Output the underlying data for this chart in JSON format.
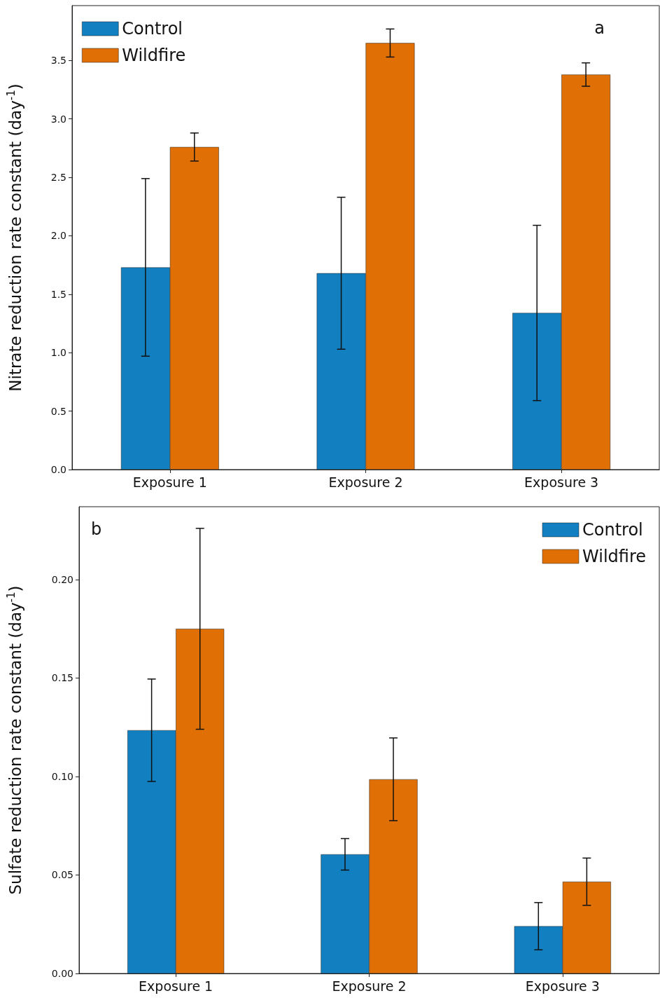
{
  "chart_data": [
    {
      "type": "bar",
      "categories": [
        "Exposure 1",
        "Exposure 2",
        "Exposure 3"
      ],
      "ylabel": "Nitrate reduction rate constant (day$^{-1}$)",
      "annotations": [
        "a"
      ],
      "series": [
        {
          "name": "Control",
          "color": "#117fc0",
          "values": [
            1.73,
            1.68,
            1.34
          ],
          "errors": [
            0.76,
            0.65,
            0.75
          ]
        },
        {
          "name": "Wildfire",
          "color": "#e07006",
          "values": [
            2.76,
            3.65,
            3.38
          ],
          "errors": [
            0.12,
            0.12,
            0.1
          ]
        }
      ],
      "ylim": [
        0,
        3.97
      ],
      "yticks": [
        {
          "value": 0,
          "label": "0.0"
        },
        0.5,
        {
          "value": 1,
          "label": "1.0"
        },
        1.5,
        {
          "value": 2,
          "label": "2.0"
        },
        2.5,
        {
          "value": 3,
          "label": "3.0"
        },
        3.5
      ],
      "grid": false,
      "legend": "top left"
    },
    {
      "type": "bar",
      "categories": [
        "Exposure 1",
        "Exposure 2",
        "Exposure 3"
      ],
      "ylabel": "Sulfate reduction rate constant (day$^{-1}$)",
      "annotations": [
        "b"
      ],
      "series": [
        {
          "name": "Control",
          "color": "#117fc0",
          "values": [
            0.1235,
            0.0605,
            0.024
          ],
          "errors": [
            0.026,
            0.008,
            0.012
          ]
        },
        {
          "name": "Wildfire",
          "color": "#e07006",
          "values": [
            0.175,
            0.0986,
            0.0466
          ],
          "errors": [
            0.051,
            0.021,
            0.012
          ]
        }
      ],
      "ylim": [
        0,
        0.237
      ],
      "yticks": [
        {
          "value": 0,
          "label": "0.00"
        },
        0.05,
        {
          "value": 0.1,
          "label": "0.10"
        },
        0.15,
        {
          "value": 0.2,
          "label": "0.20"
        }
      ],
      "grid": false,
      "legend": "top right"
    }
  ]
}
